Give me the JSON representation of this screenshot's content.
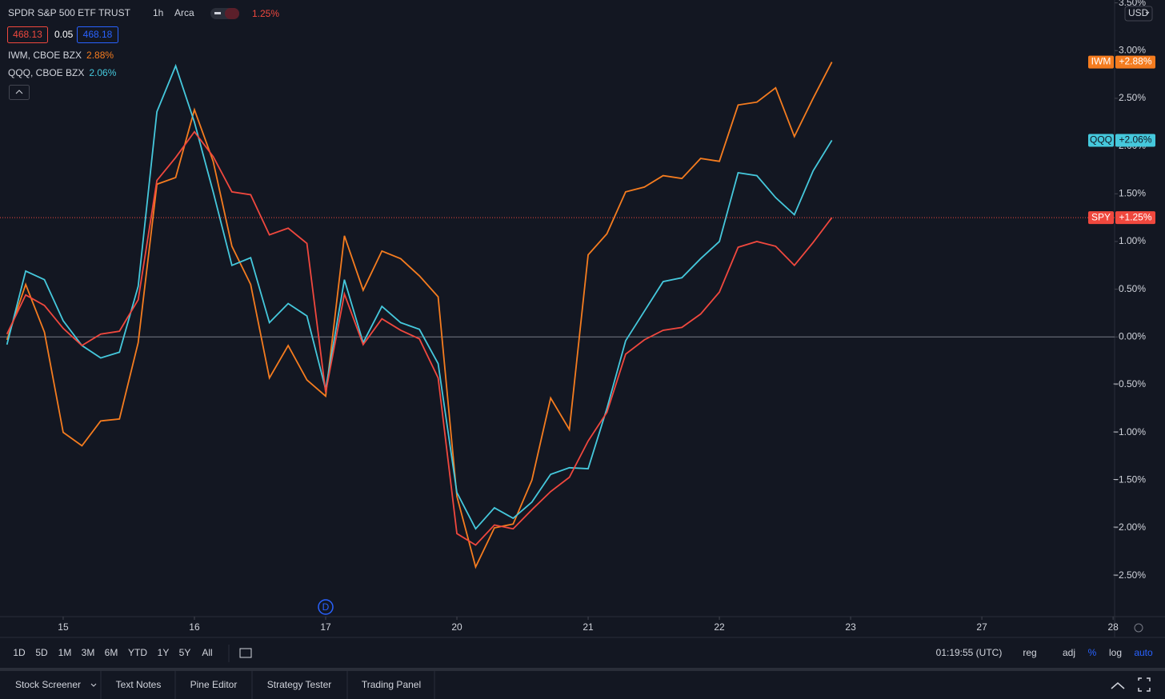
{
  "header": {
    "title": "SPDR S&P 500 ETF TRUST",
    "interval": "1h",
    "exchange": "Arca",
    "change": "1.25%",
    "bid": "468.13",
    "spread": "0.05",
    "ask": "468.18"
  },
  "currency": "USD",
  "marker": "D",
  "chart_data": {
    "type": "line",
    "x": [
      0,
      1,
      2,
      3,
      4,
      5,
      6,
      7,
      8,
      9,
      10,
      11,
      12,
      13,
      14,
      15,
      16,
      17,
      18,
      19,
      20,
      21,
      22,
      23,
      24,
      25,
      26,
      27,
      28,
      29,
      30,
      31,
      32,
      33,
      34,
      35,
      36,
      37,
      38,
      39,
      40,
      41,
      42,
      43,
      44
    ],
    "xlim": [
      -0.37,
      59.08
    ],
    "xticks": [
      {
        "value": 3,
        "label": "15"
      },
      {
        "value": 10,
        "label": "16"
      },
      {
        "value": 17,
        "label": "17"
      },
      {
        "value": 24,
        "label": "20"
      },
      {
        "value": 31,
        "label": "21"
      },
      {
        "value": 38,
        "label": "22"
      },
      {
        "value": 45,
        "label": "23"
      },
      {
        "value": 52,
        "label": "27"
      },
      {
        "value": 59,
        "label": "28"
      }
    ],
    "ylim": [
      -2.93,
      3.53
    ],
    "yticks": [
      {
        "value": 3.5,
        "label": "3.50%"
      },
      {
        "value": 3,
        "label": "3.00%"
      },
      {
        "value": 2.5,
        "label": "2.50%"
      },
      {
        "value": 2,
        "label": "2.00%"
      },
      {
        "value": 1.5,
        "label": "1.50%"
      },
      {
        "value": 1,
        "label": "1.00%"
      },
      {
        "value": 0.5,
        "label": "0.50%"
      },
      {
        "value": 0,
        "label": "0.00%"
      },
      {
        "value": -0.5,
        "label": "−0.50%"
      },
      {
        "value": -1,
        "label": "−1.00%"
      },
      {
        "value": -1.5,
        "label": "−1.50%"
      },
      {
        "value": -2,
        "label": "−2.00%"
      },
      {
        "value": -2.5,
        "label": "−2.50%"
      }
    ],
    "zero_line": true,
    "series": [
      {
        "name": "IWM",
        "legend": "IWM, CBOE BZX",
        "legend_value": "2.88%",
        "end_label": "+2.88%",
        "color": "#f57c1f",
        "values": [
          -0.03,
          0.55,
          0.05,
          -1.0,
          -1.14,
          -0.88,
          -0.86,
          -0.06,
          1.6,
          1.67,
          2.38,
          1.84,
          0.95,
          0.55,
          -0.43,
          -0.09,
          -0.45,
          -0.62,
          1.06,
          0.49,
          0.9,
          0.82,
          0.64,
          0.42,
          -1.67,
          -2.41,
          -2.0,
          -1.96,
          -1.5,
          -0.64,
          -0.97,
          0.86,
          1.08,
          1.52,
          1.57,
          1.69,
          1.66,
          1.87,
          1.84,
          2.43,
          2.46,
          2.61,
          2.1,
          2.5,
          2.88
        ]
      },
      {
        "name": "QQQ",
        "legend": "QQQ, CBOE BZX",
        "legend_value": "2.06%",
        "end_label": "+2.06%",
        "color": "#45c8dc",
        "values": [
          -0.08,
          0.69,
          0.6,
          0.17,
          -0.09,
          -0.22,
          -0.16,
          0.53,
          2.36,
          2.84,
          2.25,
          1.52,
          0.75,
          0.83,
          0.15,
          0.35,
          0.22,
          -0.55,
          0.6,
          -0.06,
          0.32,
          0.15,
          0.08,
          -0.28,
          -1.63,
          -2.01,
          -1.79,
          -1.9,
          -1.73,
          -1.44,
          -1.37,
          -1.38,
          -0.75,
          -0.04,
          0.27,
          0.58,
          0.62,
          0.82,
          1.0,
          1.72,
          1.69,
          1.46,
          1.28,
          1.74,
          2.06
        ]
      },
      {
        "name": "SPY",
        "end_label": "+1.25%",
        "color": "#f0483e",
        "last_line": true,
        "values": [
          0.03,
          0.44,
          0.33,
          0.09,
          -0.09,
          0.03,
          0.06,
          0.39,
          1.64,
          1.88,
          2.15,
          1.89,
          1.52,
          1.49,
          1.07,
          1.14,
          0.98,
          -0.58,
          0.45,
          -0.08,
          0.19,
          0.07,
          -0.02,
          -0.43,
          -2.06,
          -2.18,
          -1.97,
          -2.01,
          -1.81,
          -1.62,
          -1.47,
          -1.09,
          -0.79,
          -0.18,
          -0.03,
          0.07,
          0.1,
          0.24,
          0.47,
          0.94,
          1.0,
          0.95,
          0.75,
          0.99,
          1.25
        ]
      }
    ]
  },
  "toolbar": {
    "ranges": [
      "1D",
      "5D",
      "1M",
      "3M",
      "6M",
      "YTD",
      "1Y",
      "5Y",
      "All"
    ],
    "time": "01:19:55 (UTC)",
    "options": [
      "reg",
      "adj",
      "%",
      "log",
      "auto"
    ],
    "active_options": [
      2,
      4
    ]
  },
  "tabs": [
    "Stock Screener",
    "Text Notes",
    "Pine Editor",
    "Strategy Tester",
    "Trading Panel"
  ]
}
